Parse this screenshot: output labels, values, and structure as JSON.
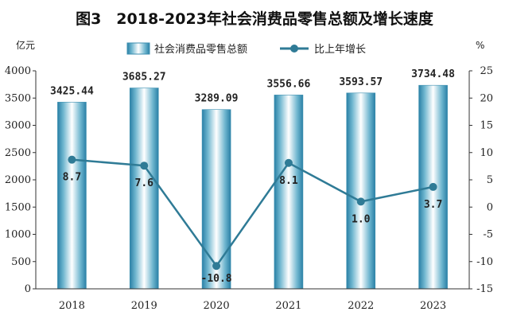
{
  "chart_data": {
    "type": "bar",
    "title": "图3　2018-2023年社会消费品零售总额及增长速度",
    "categories": [
      "2018",
      "2019",
      "2020",
      "2021",
      "2022",
      "2023"
    ],
    "series": [
      {
        "name": "社会消费品零售总额",
        "type": "bar",
        "axis": "left",
        "values": [
          3425.44,
          3685.27,
          3289.09,
          3556.66,
          3593.57,
          3734.48
        ],
        "labels": [
          "3425.44",
          "3685.27",
          "3289.09",
          "3556.66",
          "3593.57",
          "3734.48"
        ]
      },
      {
        "name": "比上年增长",
        "type": "line",
        "axis": "right",
        "values": [
          8.7,
          7.6,
          -10.8,
          8.1,
          1.0,
          3.7
        ],
        "labels": [
          "8.7",
          "7.6",
          "-10.8",
          "8.1",
          "1.0",
          "3.7"
        ]
      }
    ],
    "ylabel_left": "亿元",
    "ylabel_right": "%",
    "ylim_left": [
      0,
      4000
    ],
    "yticks_left": [
      "0",
      "500",
      "1000",
      "1500",
      "2000",
      "2500",
      "3000",
      "3500",
      "4000"
    ],
    "ylim_right": [
      -15,
      25
    ],
    "yticks_right": [
      "-15",
      "-10",
      "-5",
      "0",
      "5",
      "10",
      "15",
      "20",
      "25"
    ],
    "grid": false,
    "legend_position": "top-center",
    "colors": {
      "bar_edge": "#3d8fb0",
      "bar_center": "#ffffff",
      "line": "#2f7b96",
      "marker": "#2f7b96"
    }
  }
}
